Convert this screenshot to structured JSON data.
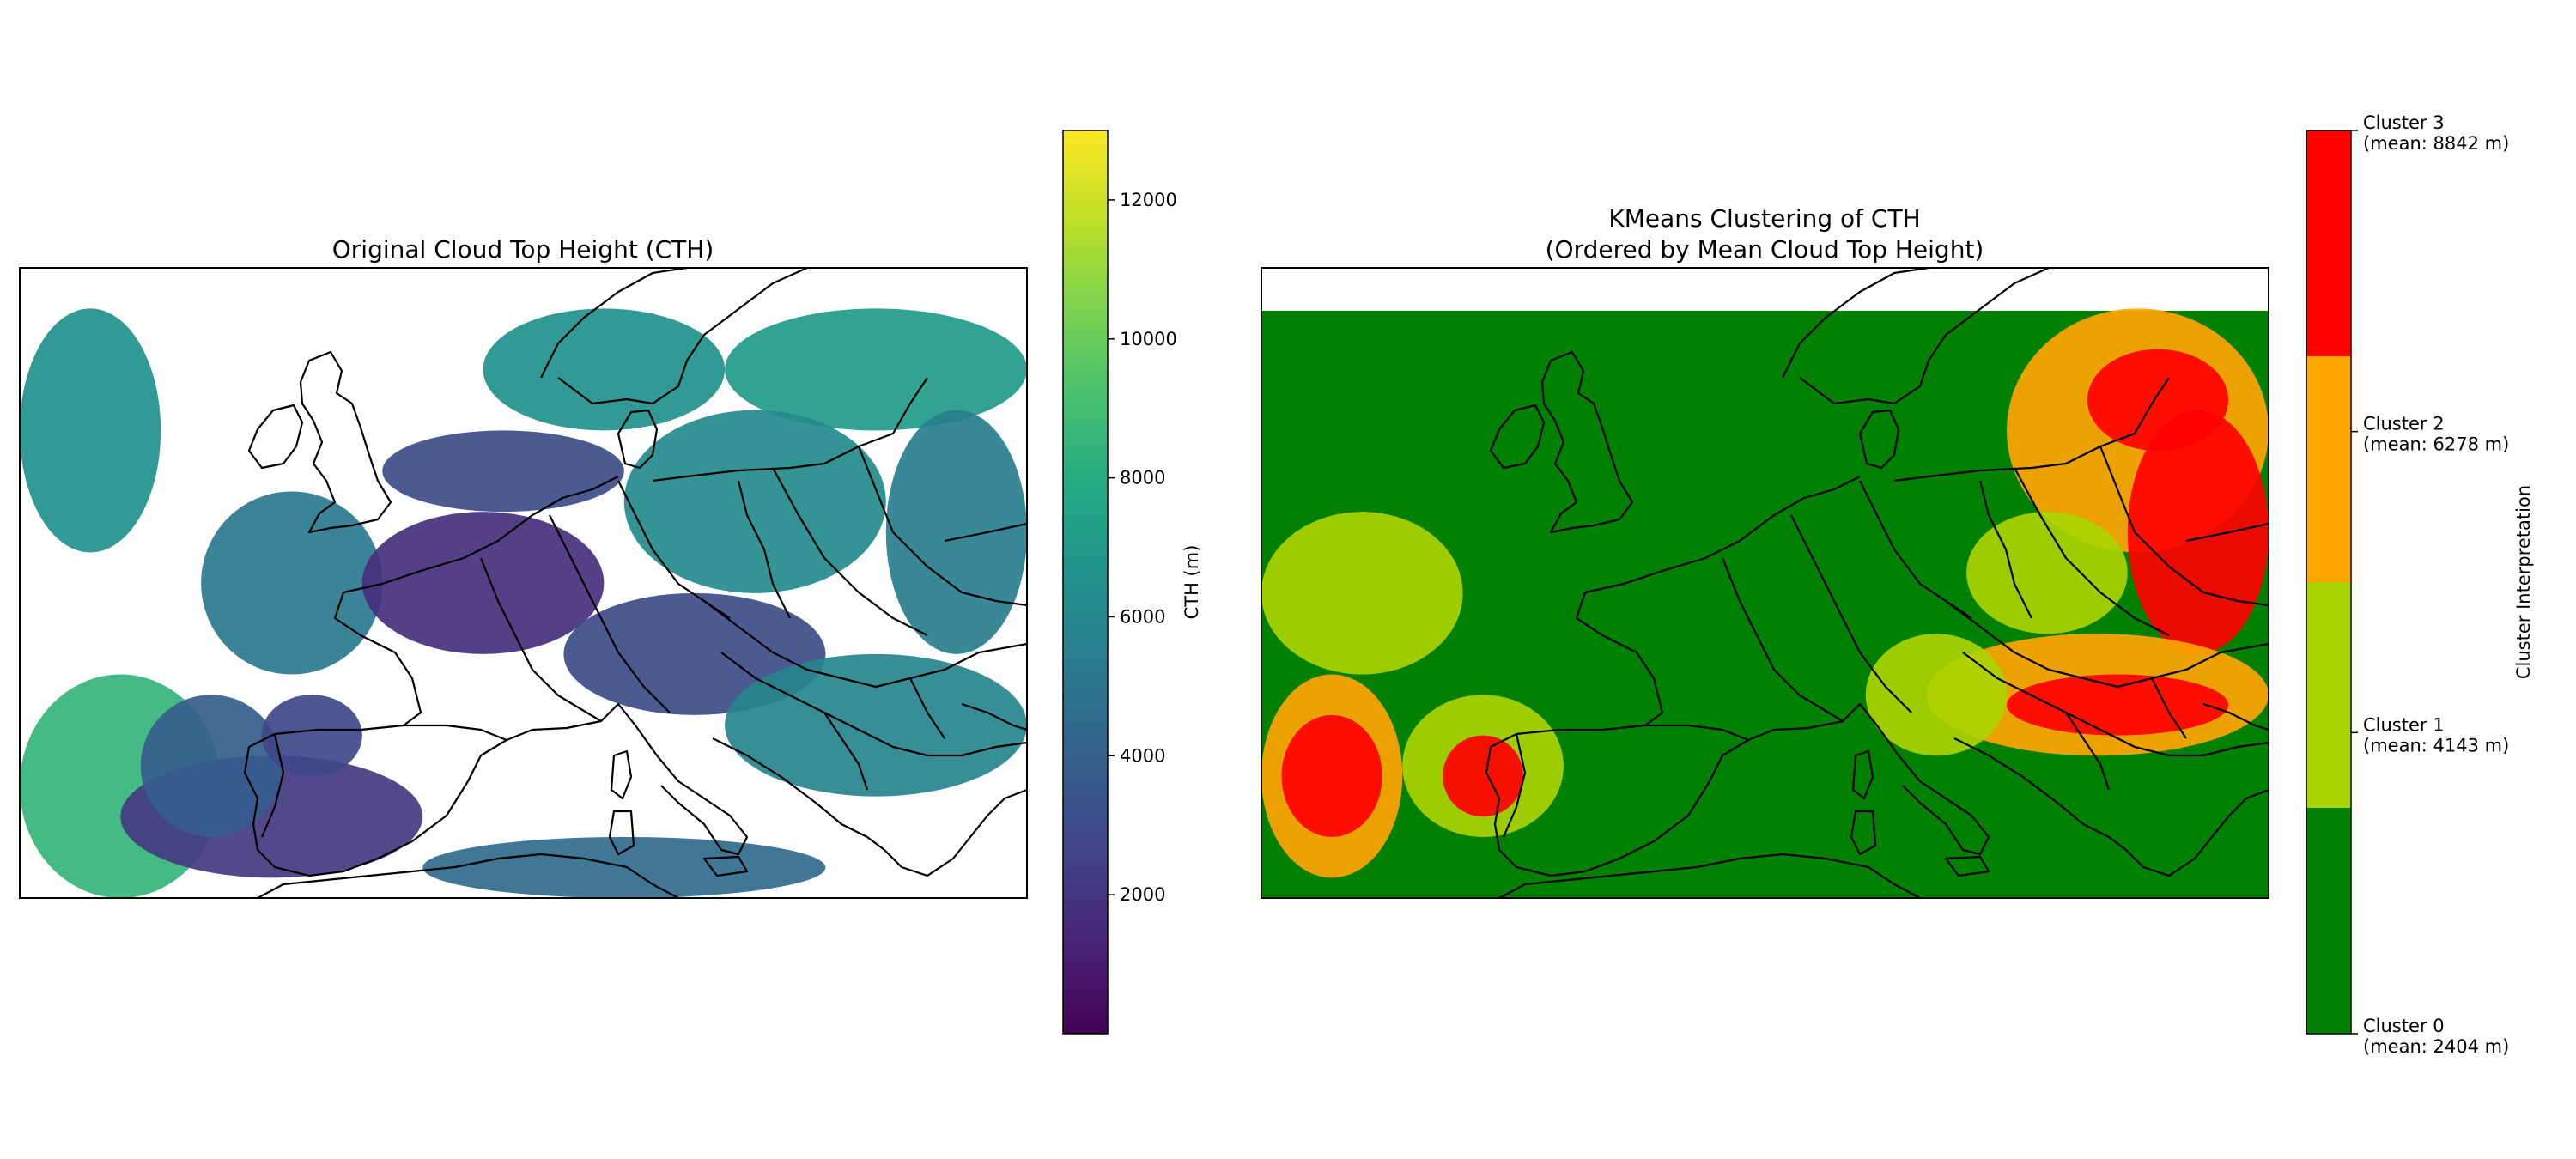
{
  "chart_data": [
    {
      "type": "heatmap",
      "title": "Original Cloud Top Height (CTH)",
      "colorbar": {
        "label": "CTH (m)",
        "colormap": "viridis",
        "range": [
          0,
          13000
        ],
        "ticks": [
          2000,
          4000,
          6000,
          8000,
          10000,
          12000
        ],
        "tick_labels": [
          "2000",
          "4000",
          "6000",
          "8000",
          "10000",
          "12000"
        ]
      },
      "map": {
        "projection": "PlateCarree",
        "region": "Western and Central Europe, North Africa coast",
        "lon_range": [
          -15,
          35
        ],
        "lat_range": [
          33,
          64
        ],
        "missing_color": "#ffffff"
      },
      "regions": [
        {
          "lon": [
            -15,
            -8
          ],
          "lat": [
            50,
            62
          ],
          "value": 6500
        },
        {
          "lon": [
            -15,
            -5
          ],
          "lat": [
            33,
            44
          ],
          "value": 8500
        },
        {
          "lon": [
            -10,
            5
          ],
          "lat": [
            34,
            40
          ],
          "value": 2200
        },
        {
          "lon": [
            -9,
            -2
          ],
          "lat": [
            36,
            43
          ],
          "value": 3800
        },
        {
          "lon": [
            -3,
            2
          ],
          "lat": [
            39,
            43
          ],
          "value": 2800
        },
        {
          "lon": [
            -6,
            3
          ],
          "lat": [
            44,
            53
          ],
          "value": 5200
        },
        {
          "lon": [
            2,
            14
          ],
          "lat": [
            45,
            52
          ],
          "value": 1800
        },
        {
          "lon": [
            3,
            15
          ],
          "lat": [
            52,
            56
          ],
          "value": 3000
        },
        {
          "lon": [
            8,
            20
          ],
          "lat": [
            56,
            62
          ],
          "value": 6500
        },
        {
          "lon": [
            20,
            35
          ],
          "lat": [
            56,
            62
          ],
          "value": 7000
        },
        {
          "lon": [
            15,
            28
          ],
          "lat": [
            48,
            57
          ],
          "value": 6200
        },
        {
          "lon": [
            28,
            35
          ],
          "lat": [
            45,
            57
          ],
          "value": 5500
        },
        {
          "lon": [
            12,
            25
          ],
          "lat": [
            42,
            48
          ],
          "value": 3000
        },
        {
          "lon": [
            20,
            35
          ],
          "lat": [
            38,
            45
          ],
          "value": 5800
        },
        {
          "lon": [
            5,
            25
          ],
          "lat": [
            33,
            36
          ],
          "value": 4500
        }
      ]
    },
    {
      "type": "heatmap",
      "title": "KMeans Clustering of CTH\n(Ordered by Mean Cloud Top Height)",
      "title_lines": [
        "KMeans Clustering of CTH",
        "(Ordered by Mean Cloud Top Height)"
      ],
      "colorbar": {
        "label": "Cluster Interpretation",
        "discrete": true,
        "categories": [
          {
            "cluster": 0,
            "label": [
              "Cluster 0",
              "(mean: 2404 m)"
            ],
            "mean_m": 2404,
            "color": "#008000"
          },
          {
            "cluster": 1,
            "label": [
              "Cluster 1",
              "(mean: 4143 m)"
            ],
            "mean_m": 4143,
            "color": "#aad400"
          },
          {
            "cluster": 2,
            "label": [
              "Cluster 2",
              "(mean: 6278 m)"
            ],
            "mean_m": 6278,
            "color": "#ffa500"
          },
          {
            "cluster": 3,
            "label": [
              "Cluster 3",
              "(mean: 8842 m)"
            ],
            "mean_m": 8842,
            "color": "#ff0000"
          }
        ]
      },
      "map": {
        "projection": "PlateCarree",
        "region": "Western and Central Europe, North Africa coast",
        "lon_range": [
          -15,
          35
        ],
        "lat_range": [
          33,
          64
        ]
      },
      "regions": [
        {
          "lon": [
            -15,
            -5
          ],
          "lat": [
            44,
            52
          ],
          "cluster": 1
        },
        {
          "lon": [
            -15,
            -8
          ],
          "lat": [
            34,
            44
          ],
          "cluster": 2
        },
        {
          "lon": [
            -14,
            -9
          ],
          "lat": [
            36,
            42
          ],
          "cluster": 3
        },
        {
          "lon": [
            -8,
            0
          ],
          "lat": [
            36,
            43
          ],
          "cluster": 1
        },
        {
          "lon": [
            -6,
            -2
          ],
          "lat": [
            37,
            41
          ],
          "cluster": 3
        },
        {
          "lon": [
            22,
            35
          ],
          "lat": [
            50,
            62
          ],
          "cluster": 2
        },
        {
          "lon": [
            26,
            33
          ],
          "lat": [
            55,
            60
          ],
          "cluster": 3
        },
        {
          "lon": [
            28,
            35
          ],
          "lat": [
            45,
            57
          ],
          "cluster": 3
        },
        {
          "lon": [
            20,
            28
          ],
          "lat": [
            46,
            52
          ],
          "cluster": 1
        },
        {
          "lon": [
            18,
            35
          ],
          "lat": [
            40,
            46
          ],
          "cluster": 2
        },
        {
          "lon": [
            22,
            33
          ],
          "lat": [
            41,
            44
          ],
          "cluster": 3
        },
        {
          "lon": [
            15,
            22
          ],
          "lat": [
            40,
            46
          ],
          "cluster": 1
        }
      ]
    }
  ]
}
